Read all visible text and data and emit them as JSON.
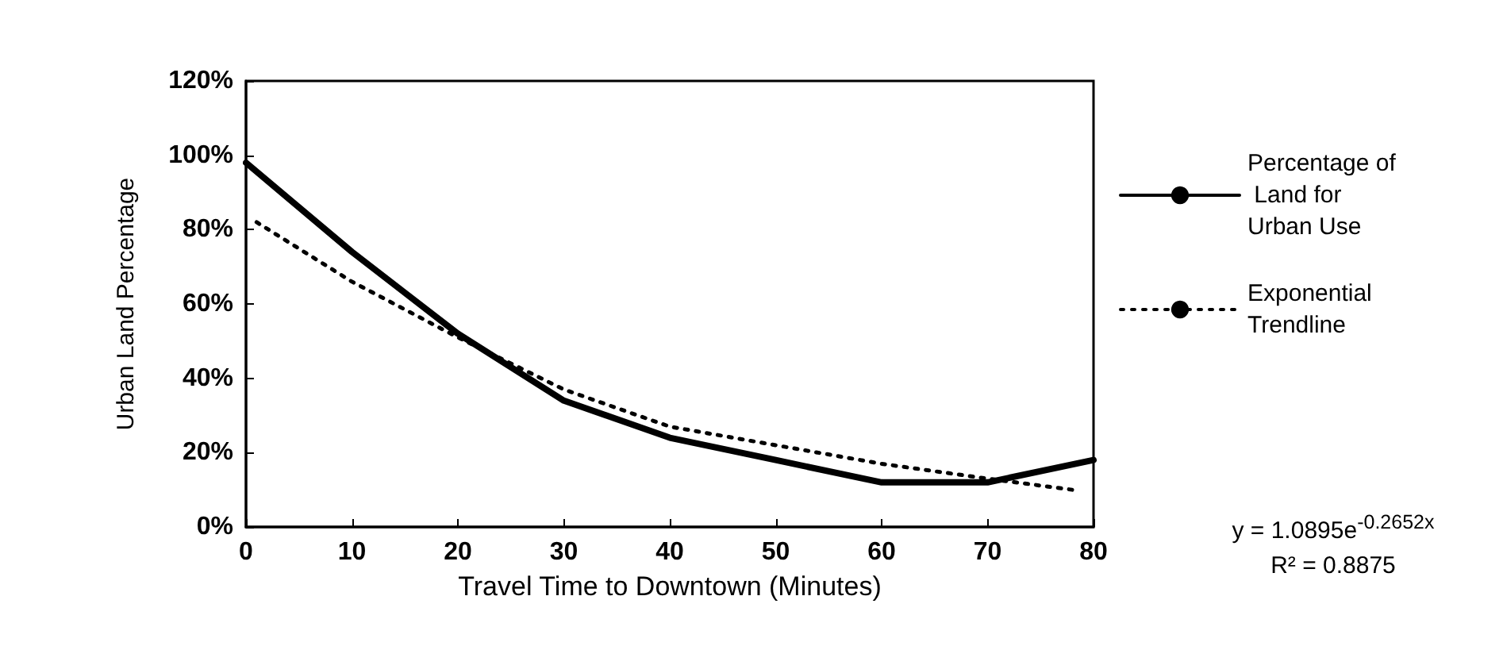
{
  "chart_data": {
    "type": "line",
    "xlabel": "Travel Time to Downtown (Minutes)",
    "ylabel": "Urban Land Percentage",
    "xlim": [
      0,
      80
    ],
    "xticks": [
      0,
      10,
      20,
      30,
      40,
      50,
      60,
      70,
      80
    ],
    "ylim": [
      0,
      120
    ],
    "yticks": [
      {
        "value": 0,
        "label": "0%"
      },
      {
        "value": 20,
        "label": "20%"
      },
      {
        "value": 40,
        "label": "40%"
      },
      {
        "value": 60,
        "label": "60%"
      },
      {
        "value": 80,
        "label": "80%"
      },
      {
        "value": 100,
        "label": "100%"
      },
      {
        "value": 120,
        "label": "120%"
      }
    ],
    "series": [
      {
        "name": "Percentage of Land for Urban Use",
        "color": "#000000",
        "line_style": "solid",
        "x": [
          0,
          10,
          20,
          30,
          40,
          50,
          60,
          70,
          80
        ],
        "values": [
          98,
          74,
          52,
          34,
          24,
          18,
          12,
          12,
          18
        ]
      },
      {
        "name": "Exponential Trendline",
        "color": "#000000",
        "line_style": "dotted",
        "x": [
          1,
          10,
          20,
          30,
          40,
          50,
          60,
          70,
          78
        ],
        "values": [
          82,
          66,
          51,
          37,
          27,
          22,
          17,
          13,
          10
        ]
      }
    ],
    "marker": "none",
    "grid": false,
    "legend": "right",
    "annotations": [
      "y = 1.0895e$^{-0.2652x}$",
      "R² = 0.8875"
    ]
  }
}
